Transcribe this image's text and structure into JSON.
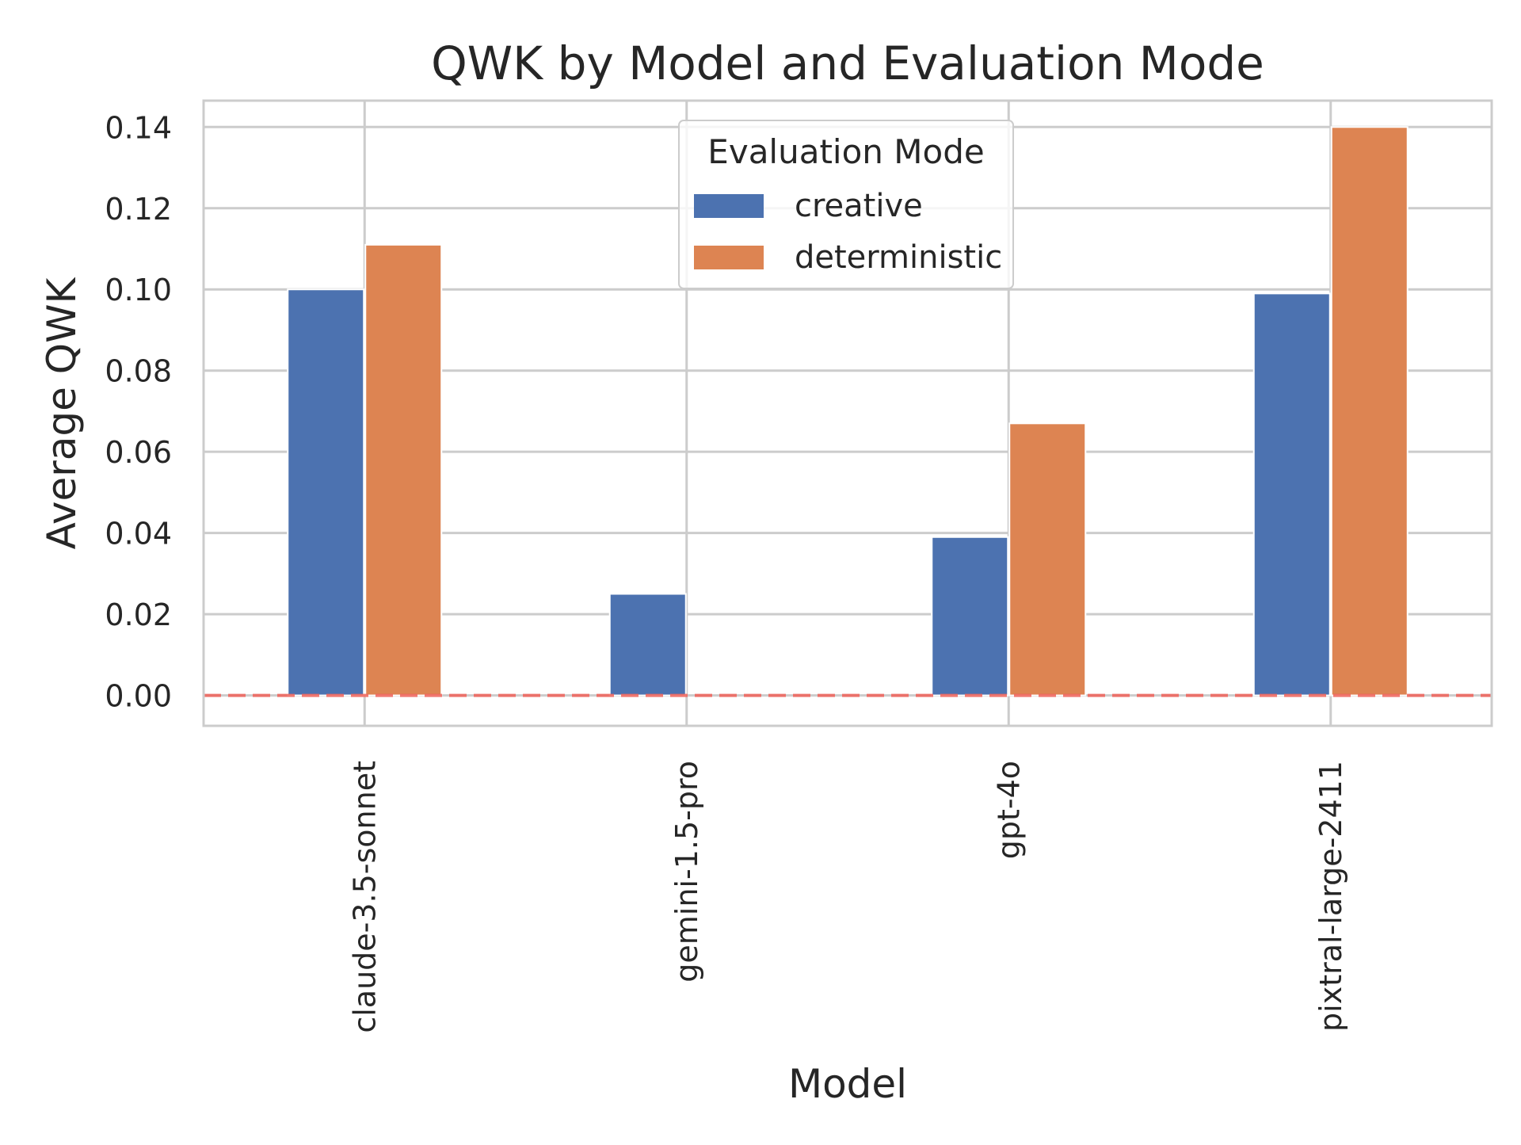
{
  "chart_data": {
    "type": "bar",
    "title": "QWK by Model and Evaluation Mode",
    "xlabel": "Model",
    "ylabel": "Average QWK",
    "categories": [
      "claude-3.5-sonnet",
      "gemini-1.5-pro",
      "gpt-4o",
      "pixtral-large-2411"
    ],
    "series": [
      {
        "name": "creative",
        "values": [
          0.1,
          0.025,
          0.039,
          0.099
        ],
        "color": "#4c72b0"
      },
      {
        "name": "deterministic",
        "values": [
          0.111,
          0.0,
          0.067,
          0.14
        ],
        "color": "#dd8452"
      }
    ],
    "ylim": [
      -0.0075,
      0.1465
    ],
    "yticks": [
      "0.00",
      "0.02",
      "0.04",
      "0.06",
      "0.08",
      "0.10",
      "0.12",
      "0.14"
    ],
    "reference_line": {
      "y": 0.0,
      "color": "#f0625a",
      "style": "dashed"
    },
    "legend": {
      "title": "Evaluation Mode",
      "placement": "top-center"
    },
    "grid": true
  }
}
